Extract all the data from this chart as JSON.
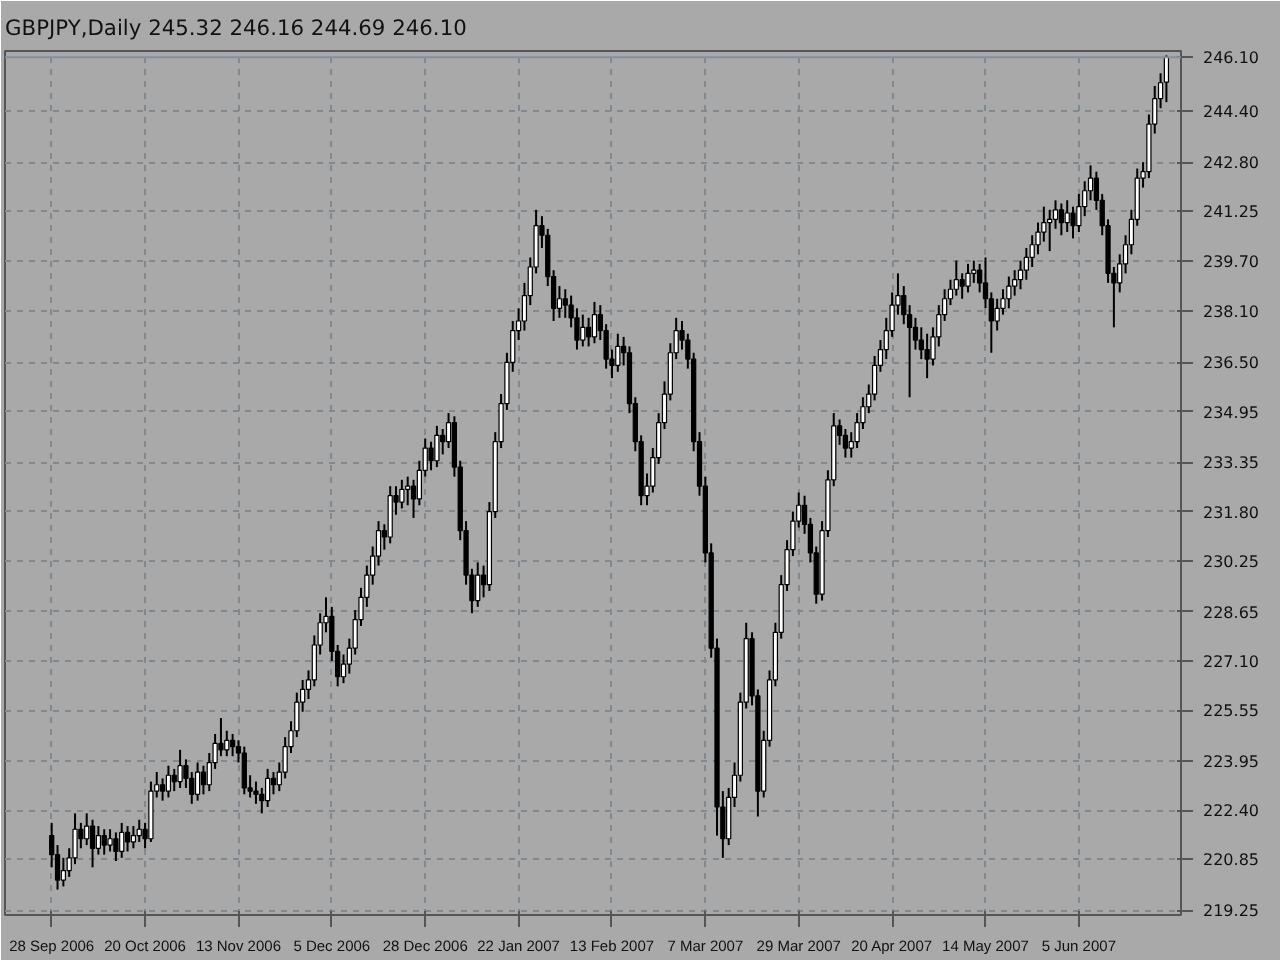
{
  "chart_data": {
    "type": "candlestick",
    "title": "GBPJPY,Daily 245.32 246.16 244.69 246.10",
    "categories": [
      "28 Sep 2006",
      null,
      null,
      null,
      null,
      null,
      null,
      null,
      null,
      null,
      null,
      null,
      null,
      null,
      null,
      null,
      "20 Oct 2006",
      null,
      null,
      null,
      null,
      null,
      null,
      null,
      null,
      null,
      null,
      null,
      null,
      null,
      null,
      null,
      "13 Nov 2006",
      null,
      null,
      null,
      null,
      null,
      null,
      null,
      null,
      null,
      null,
      null,
      null,
      null,
      null,
      null,
      "5 Dec 2006",
      null,
      null,
      null,
      null,
      null,
      null,
      null,
      null,
      null,
      null,
      null,
      null,
      null,
      null,
      null,
      "28 Dec 2006",
      null,
      null,
      null,
      null,
      null,
      null,
      null,
      null,
      null,
      null,
      null,
      null,
      null,
      null,
      null,
      "22 Jan 2007",
      null,
      null,
      null,
      null,
      null,
      null,
      null,
      null,
      null,
      null,
      null,
      null,
      null,
      null,
      null,
      "13 Feb 2007",
      null,
      null,
      null,
      null,
      null,
      null,
      null,
      null,
      null,
      null,
      null,
      null,
      null,
      null,
      null,
      "7 Mar 2007",
      null,
      null,
      null,
      null,
      null,
      null,
      null,
      null,
      null,
      null,
      null,
      null,
      null,
      null,
      null,
      "29 Mar 2007",
      null,
      null,
      null,
      null,
      null,
      null,
      null,
      null,
      null,
      null,
      null,
      null,
      null,
      null,
      null,
      "20 Apr 2007",
      null,
      null,
      null,
      null,
      null,
      null,
      null,
      null,
      null,
      null,
      null,
      null,
      null,
      null,
      null,
      "14 May 2007",
      null,
      null,
      null,
      null,
      null,
      null,
      null,
      null,
      null,
      null,
      null,
      null,
      null,
      null,
      null,
      "5 Jun 2007",
      null,
      null,
      null,
      null,
      null,
      null,
      null,
      null,
      null,
      null,
      null,
      null,
      null,
      null,
      null
    ],
    "ohlc": [
      [
        221.6,
        222.0,
        220.6,
        221.0
      ],
      [
        221.0,
        221.3,
        219.9,
        220.2
      ],
      [
        220.2,
        220.9,
        220.0,
        220.5
      ],
      [
        220.5,
        221.2,
        220.3,
        220.9
      ],
      [
        220.9,
        222.3,
        220.7,
        221.8
      ],
      [
        221.8,
        222.0,
        221.2,
        221.5
      ],
      [
        221.5,
        222.3,
        221.3,
        221.9
      ],
      [
        221.9,
        222.1,
        220.6,
        221.2
      ],
      [
        221.2,
        221.9,
        221.0,
        221.6
      ],
      [
        221.6,
        221.8,
        221.0,
        221.3
      ],
      [
        221.3,
        221.8,
        221.1,
        221.5
      ],
      [
        221.5,
        221.7,
        220.8,
        221.1
      ],
      [
        221.1,
        222.0,
        220.9,
        221.7
      ],
      [
        221.7,
        221.9,
        221.1,
        221.4
      ],
      [
        221.4,
        221.9,
        221.2,
        221.6
      ],
      [
        221.6,
        222.1,
        221.4,
        221.8
      ],
      [
        221.8,
        222.0,
        221.2,
        221.5
      ],
      [
        221.5,
        223.3,
        221.4,
        223.0
      ],
      [
        223.0,
        223.6,
        222.8,
        223.2
      ],
      [
        223.2,
        223.4,
        222.7,
        223.0
      ],
      [
        223.0,
        223.8,
        222.8,
        223.5
      ],
      [
        223.5,
        223.7,
        223.0,
        223.3
      ],
      [
        223.3,
        224.3,
        223.1,
        223.8
      ],
      [
        223.8,
        224.0,
        223.1,
        223.4
      ],
      [
        223.4,
        223.6,
        222.6,
        222.9
      ],
      [
        222.9,
        223.9,
        222.7,
        223.6
      ],
      [
        223.6,
        223.8,
        222.9,
        223.2
      ],
      [
        223.2,
        224.2,
        223.0,
        223.9
      ],
      [
        223.9,
        224.8,
        223.7,
        224.5
      ],
      [
        224.5,
        225.3,
        224.1,
        224.3
      ],
      [
        224.3,
        224.9,
        224.1,
        224.6
      ],
      [
        224.6,
        224.8,
        224.1,
        224.4
      ],
      [
        224.4,
        224.6,
        223.9,
        224.2
      ],
      [
        224.2,
        224.4,
        222.9,
        223.1
      ],
      [
        223.1,
        223.5,
        222.8,
        223.0
      ],
      [
        223.0,
        223.3,
        222.6,
        222.9
      ],
      [
        222.9,
        223.1,
        222.3,
        222.7
      ],
      [
        222.7,
        223.7,
        222.5,
        223.4
      ],
      [
        223.4,
        223.6,
        222.9,
        223.2
      ],
      [
        223.2,
        223.9,
        223.0,
        223.6
      ],
      [
        223.6,
        224.7,
        223.4,
        224.4
      ],
      [
        224.4,
        225.2,
        224.2,
        224.9
      ],
      [
        224.9,
        226.1,
        224.7,
        225.8
      ],
      [
        225.8,
        226.5,
        225.5,
        226.2
      ],
      [
        226.2,
        226.8,
        225.9,
        226.5
      ],
      [
        226.5,
        227.9,
        226.3,
        227.6
      ],
      [
        227.6,
        228.6,
        227.3,
        228.3
      ],
      [
        228.3,
        229.1,
        228.0,
        228.5
      ],
      [
        228.5,
        228.8,
        227.1,
        227.4
      ],
      [
        227.4,
        227.6,
        226.3,
        226.6
      ],
      [
        226.6,
        227.3,
        226.4,
        227.0
      ],
      [
        227.0,
        227.8,
        226.7,
        227.5
      ],
      [
        227.5,
        228.7,
        227.3,
        228.4
      ],
      [
        228.4,
        229.4,
        228.2,
        229.1
      ],
      [
        229.1,
        230.1,
        228.8,
        229.8
      ],
      [
        229.8,
        230.7,
        229.5,
        230.4
      ],
      [
        230.4,
        231.5,
        230.1,
        231.2
      ],
      [
        231.2,
        231.4,
        230.6,
        231.0
      ],
      [
        231.0,
        232.6,
        230.8,
        232.3
      ],
      [
        232.3,
        232.6,
        231.7,
        232.1
      ],
      [
        232.1,
        232.8,
        231.9,
        232.5
      ],
      [
        232.5,
        232.9,
        232.0,
        232.6
      ],
      [
        232.6,
        232.8,
        231.6,
        232.2
      ],
      [
        232.2,
        233.4,
        232.0,
        233.1
      ],
      [
        233.1,
        234.1,
        232.9,
        233.8
      ],
      [
        233.8,
        234.0,
        233.1,
        233.4
      ],
      [
        233.4,
        234.5,
        233.2,
        234.2
      ],
      [
        234.2,
        234.4,
        233.6,
        234.0
      ],
      [
        234.0,
        234.9,
        233.8,
        234.6
      ],
      [
        234.6,
        234.8,
        232.9,
        233.2
      ],
      [
        233.2,
        233.4,
        230.9,
        231.2
      ],
      [
        231.2,
        231.5,
        229.5,
        229.8
      ],
      [
        229.8,
        230.0,
        228.6,
        229.0
      ],
      [
        229.0,
        230.2,
        228.8,
        229.8
      ],
      [
        229.8,
        230.1,
        229.1,
        229.5
      ],
      [
        229.5,
        232.1,
        229.3,
        231.8
      ],
      [
        231.8,
        234.3,
        231.6,
        234.0
      ],
      [
        234.0,
        235.5,
        233.8,
        235.2
      ],
      [
        235.2,
        236.8,
        235.0,
        236.5
      ],
      [
        236.5,
        237.8,
        236.2,
        237.5
      ],
      [
        237.5,
        238.2,
        237.2,
        237.8
      ],
      [
        237.8,
        239.0,
        237.5,
        238.6
      ],
      [
        238.6,
        239.8,
        238.3,
        239.5
      ],
      [
        239.5,
        241.3,
        239.3,
        240.8
      ],
      [
        240.8,
        241.1,
        240.1,
        240.5
      ],
      [
        240.5,
        240.7,
        238.9,
        239.2
      ],
      [
        239.2,
        239.4,
        237.8,
        238.2
      ],
      [
        238.2,
        238.9,
        237.9,
        238.5
      ],
      [
        238.5,
        238.8,
        237.9,
        238.3
      ],
      [
        238.3,
        238.6,
        237.6,
        237.9
      ],
      [
        237.9,
        238.2,
        236.9,
        237.2
      ],
      [
        237.2,
        238.0,
        237.0,
        237.6
      ],
      [
        237.6,
        237.9,
        237.0,
        237.3
      ],
      [
        237.3,
        238.4,
        237.1,
        238.0
      ],
      [
        238.0,
        238.3,
        237.2,
        237.5
      ],
      [
        237.5,
        237.7,
        236.3,
        236.6
      ],
      [
        236.6,
        236.9,
        236.0,
        236.4
      ],
      [
        236.4,
        237.4,
        236.2,
        237.0
      ],
      [
        237.0,
        237.3,
        236.4,
        236.8
      ],
      [
        236.8,
        237.0,
        234.9,
        235.2
      ],
      [
        235.2,
        235.4,
        233.7,
        234.0
      ],
      [
        234.0,
        234.2,
        232.0,
        232.3
      ],
      [
        232.3,
        233.0,
        232.0,
        232.6
      ],
      [
        232.6,
        233.8,
        232.4,
        233.5
      ],
      [
        233.5,
        234.9,
        233.3,
        234.6
      ],
      [
        234.6,
        235.9,
        234.4,
        235.5
      ],
      [
        235.5,
        237.1,
        235.3,
        236.8
      ],
      [
        236.8,
        237.9,
        236.6,
        237.5
      ],
      [
        237.5,
        237.8,
        236.9,
        237.2
      ],
      [
        237.2,
        237.4,
        236.3,
        236.6
      ],
      [
        236.6,
        236.8,
        233.7,
        234.0
      ],
      [
        234.0,
        234.3,
        232.3,
        232.6
      ],
      [
        232.6,
        232.9,
        230.2,
        230.5
      ],
      [
        230.5,
        230.8,
        227.2,
        227.5
      ],
      [
        227.5,
        227.8,
        221.6,
        222.5
      ],
      [
        222.5,
        223.0,
        220.9,
        221.5
      ],
      [
        221.5,
        223.1,
        221.3,
        222.8
      ],
      [
        222.8,
        223.9,
        222.5,
        223.5
      ],
      [
        223.5,
        226.1,
        223.3,
        225.8
      ],
      [
        225.8,
        228.3,
        225.6,
        227.8
      ],
      [
        227.8,
        228.0,
        225.7,
        226.0
      ],
      [
        226.0,
        226.2,
        222.2,
        223.0
      ],
      [
        223.0,
        224.9,
        222.8,
        224.6
      ],
      [
        224.6,
        226.8,
        224.4,
        226.5
      ],
      [
        226.5,
        228.3,
        226.3,
        228.0
      ],
      [
        228.0,
        229.8,
        227.8,
        229.5
      ],
      [
        229.5,
        230.9,
        229.3,
        230.6
      ],
      [
        230.6,
        231.8,
        230.4,
        231.5
      ],
      [
        231.5,
        232.4,
        231.3,
        232.0
      ],
      [
        232.0,
        232.3,
        231.1,
        231.4
      ],
      [
        231.4,
        231.6,
        230.2,
        230.5
      ],
      [
        230.5,
        230.7,
        228.9,
        229.2
      ],
      [
        229.2,
        231.5,
        229.0,
        231.2
      ],
      [
        231.2,
        233.1,
        231.0,
        232.8
      ],
      [
        232.8,
        234.9,
        232.6,
        234.5
      ],
      [
        234.5,
        234.7,
        233.9,
        234.2
      ],
      [
        234.2,
        234.4,
        233.5,
        233.8
      ],
      [
        233.8,
        234.3,
        233.5,
        234.0
      ],
      [
        234.0,
        234.9,
        233.8,
        234.6
      ],
      [
        234.6,
        235.4,
        234.4,
        235.1
      ],
      [
        235.1,
        235.8,
        234.9,
        235.5
      ],
      [
        235.5,
        236.7,
        235.3,
        236.4
      ],
      [
        236.4,
        237.2,
        236.2,
        236.9
      ],
      [
        236.9,
        237.9,
        236.6,
        237.5
      ],
      [
        237.5,
        238.7,
        237.3,
        238.3
      ],
      [
        238.3,
        239.3,
        238.0,
        238.6
      ],
      [
        238.6,
        238.9,
        237.7,
        238.0
      ],
      [
        238.0,
        238.3,
        235.4,
        237.6
      ],
      [
        237.6,
        237.9,
        236.9,
        237.2
      ],
      [
        237.2,
        237.6,
        236.6,
        236.9
      ],
      [
        236.9,
        237.4,
        236.0,
        236.6
      ],
      [
        236.6,
        237.6,
        236.4,
        237.3
      ],
      [
        237.3,
        238.3,
        237.0,
        238.0
      ],
      [
        238.0,
        238.8,
        237.8,
        238.5
      ],
      [
        238.5,
        239.1,
        238.3,
        238.8
      ],
      [
        238.8,
        239.7,
        238.6,
        239.1
      ],
      [
        239.1,
        239.3,
        238.5,
        238.9
      ],
      [
        238.9,
        239.6,
        238.7,
        239.3
      ],
      [
        239.3,
        239.7,
        239.0,
        239.4
      ],
      [
        239.4,
        239.6,
        238.7,
        239.0
      ],
      [
        239.0,
        239.8,
        238.2,
        238.5
      ],
      [
        238.5,
        238.7,
        236.8,
        237.8
      ],
      [
        237.8,
        238.5,
        237.5,
        238.2
      ],
      [
        238.2,
        238.8,
        238.0,
        238.5
      ],
      [
        238.5,
        239.2,
        238.2,
        238.9
      ],
      [
        238.9,
        239.4,
        238.6,
        239.1
      ],
      [
        239.1,
        239.7,
        238.8,
        239.4
      ],
      [
        239.4,
        240.1,
        239.1,
        239.8
      ],
      [
        239.8,
        240.5,
        239.5,
        240.2
      ],
      [
        240.2,
        240.9,
        239.9,
        240.6
      ],
      [
        240.6,
        241.4,
        240.3,
        240.9
      ],
      [
        240.9,
        241.3,
        240.0,
        241.0
      ],
      [
        241.0,
        241.6,
        240.7,
        241.3
      ],
      [
        241.3,
        241.5,
        240.5,
        240.9
      ],
      [
        240.9,
        241.6,
        240.6,
        241.2
      ],
      [
        241.2,
        241.4,
        240.4,
        240.8
      ],
      [
        240.8,
        241.8,
        240.6,
        241.4
      ],
      [
        241.4,
        242.2,
        241.1,
        241.9
      ],
      [
        241.9,
        242.7,
        241.6,
        242.3
      ],
      [
        242.3,
        242.5,
        241.3,
        241.6
      ],
      [
        241.6,
        241.8,
        240.5,
        240.8
      ],
      [
        240.8,
        241.0,
        239.0,
        239.3
      ],
      [
        239.3,
        239.5,
        237.6,
        239.0
      ],
      [
        239.0,
        239.9,
        238.7,
        239.6
      ],
      [
        239.6,
        240.5,
        239.3,
        240.2
      ],
      [
        240.2,
        241.3,
        239.9,
        241.0
      ],
      [
        241.0,
        242.6,
        240.8,
        242.3
      ],
      [
        242.3,
        242.8,
        242.0,
        242.5
      ],
      [
        242.5,
        244.3,
        242.3,
        244.0
      ],
      [
        244.0,
        245.2,
        243.7,
        244.8
      ],
      [
        244.8,
        245.6,
        244.5,
        245.3
      ],
      [
        245.32,
        246.16,
        244.69,
        246.1
      ]
    ],
    "ylim": [
      219.1,
      246.3
    ],
    "yticks": [
      219.25,
      220.85,
      {
        "value": 222.4,
        "label": "222.40"
      },
      223.95,
      225.55,
      {
        "value": 227.1,
        "label": "227.10"
      },
      228.65,
      230.25,
      {
        "value": 231.8,
        "label": "231.80"
      },
      233.35,
      234.95,
      {
        "value": 236.5,
        "label": "236.50"
      },
      {
        "value": 238.1,
        "label": "238.10"
      },
      {
        "value": 239.7,
        "label": "239.70"
      },
      241.25,
      {
        "value": 242.8,
        "label": "242.80"
      },
      {
        "value": 244.4,
        "label": "244.40"
      }
    ],
    "grid": true,
    "ref_lines": [
      {
        "axis": "y",
        "value": 246.1,
        "label": "246.10"
      }
    ]
  }
}
